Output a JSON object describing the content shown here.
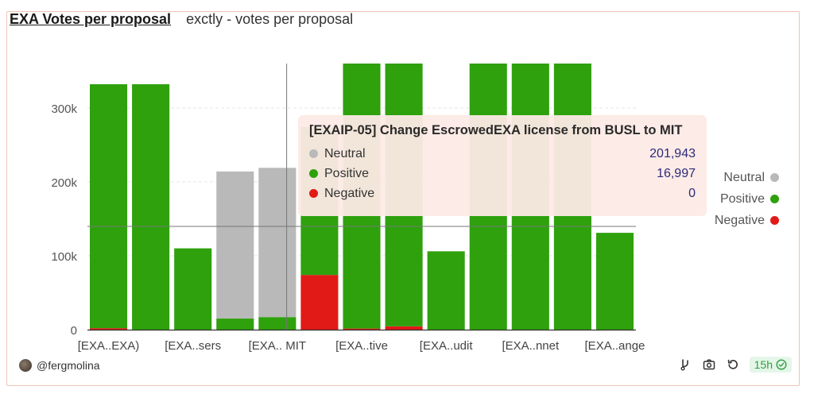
{
  "header": {
    "title": "EXA Votes per proposal",
    "subtitle": "exctly - votes per proposal"
  },
  "colors": {
    "neutral": "#b9b9b9",
    "positive": "#2ea10d",
    "negative": "#e11a17",
    "axis": "#333333",
    "grid": "#e5e5e5"
  },
  "chart_data": {
    "type": "bar",
    "stacked": true,
    "categories": [
      "[EXA..EXA)",
      "",
      "[EXA..sers",
      "",
      "[EXA.. MIT",
      "",
      "[EXA..tive",
      "",
      "[EXA..udit",
      "",
      "[EXA..nnet",
      "",
      "[EXA..ange"
    ],
    "series": [
      {
        "name": "Negative",
        "color": "#e11a17",
        "values": [
          2000,
          0,
          0,
          0,
          0,
          74000,
          1500,
          4500,
          0,
          0,
          0,
          0,
          0
        ]
      },
      {
        "name": "Positive",
        "color": "#2ea10d",
        "values": [
          330000,
          332000,
          110000,
          15000,
          16997,
          200000,
          360000,
          360000,
          106000,
          360000,
          360000,
          360000,
          131000
        ]
      },
      {
        "name": "Neutral",
        "color": "#b9b9b9",
        "values": [
          0,
          0,
          0,
          199000,
          201943,
          0,
          0,
          0,
          0,
          0,
          0,
          0,
          0
        ]
      }
    ],
    "yticks": [
      0,
      100000,
      200000,
      300000
    ],
    "ytick_labels": [
      "0",
      "100k",
      "200k",
      "300k"
    ],
    "ylim": [
      0,
      360000
    ],
    "grid": true,
    "legend_position": "right"
  },
  "tooltip": {
    "title": "[EXAIP-05] Change EscrowedEXA license from BUSL to MIT",
    "rows": [
      {
        "label": "Neutral",
        "value": "201,943",
        "color": "#b9b9b9"
      },
      {
        "label": "Positive",
        "value": "16,997",
        "color": "#2ea10d"
      },
      {
        "label": "Negative",
        "value": "0",
        "color": "#e11a17"
      }
    ]
  },
  "legend": [
    {
      "label": "Neutral",
      "color": "#b9b9b9"
    },
    {
      "label": "Positive",
      "color": "#2ea10d"
    },
    {
      "label": "Negative",
      "color": "#e11a17"
    }
  ],
  "footer": {
    "author": "@fergmolina",
    "age": "15h"
  }
}
